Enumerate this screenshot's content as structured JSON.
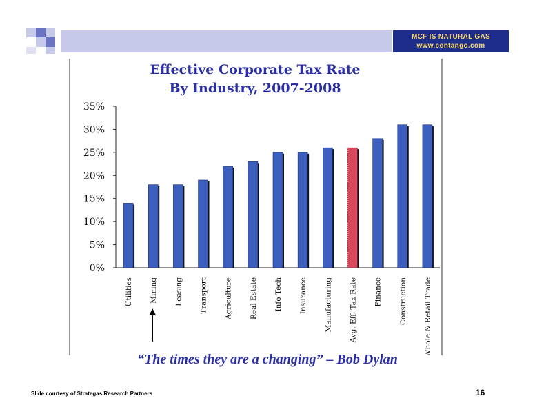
{
  "header": {
    "brand_line1": "MCF IS NATURAL GAS",
    "brand_line2": "www.contango.com",
    "colors": {
      "brand_bg": "#1f2d8a",
      "brand_text": "#f3d56b",
      "bar": "#c7c9e8",
      "squares": "#6b73c4"
    }
  },
  "chart_data": {
    "type": "bar",
    "title": "Effective Corporate Tax Rate",
    "subtitle": "By Industry, 2007-2008",
    "categories": [
      "Utilities",
      "Mining",
      "Leasing",
      "Transport",
      "Agriculture",
      "Real Estate",
      "Info Tech",
      "Insurance",
      "Manufacturing",
      "Avg. Eff. Tax Rate",
      "Finance",
      "Construction",
      "Whole & Retail Trade"
    ],
    "values": [
      14,
      18,
      18,
      19,
      22,
      23,
      25,
      25,
      26,
      26,
      28,
      31,
      31
    ],
    "ylim": [
      0,
      35
    ],
    "yticks": [
      "0%",
      "5%",
      "10%",
      "15%",
      "20%",
      "25%",
      "30%",
      "35%"
    ],
    "highlight_index": 9,
    "colors": {
      "bar": "#3c5fbe",
      "highlight": "#d9475a",
      "shadow": "#111111"
    },
    "grid": false
  },
  "annotation": {
    "arrow_target": "Mining"
  },
  "footer": {
    "quote": "“The times they are a changing” – Bob Dylan",
    "credit": "Slide courtesy of Strategas Research Partners",
    "page": "16"
  }
}
